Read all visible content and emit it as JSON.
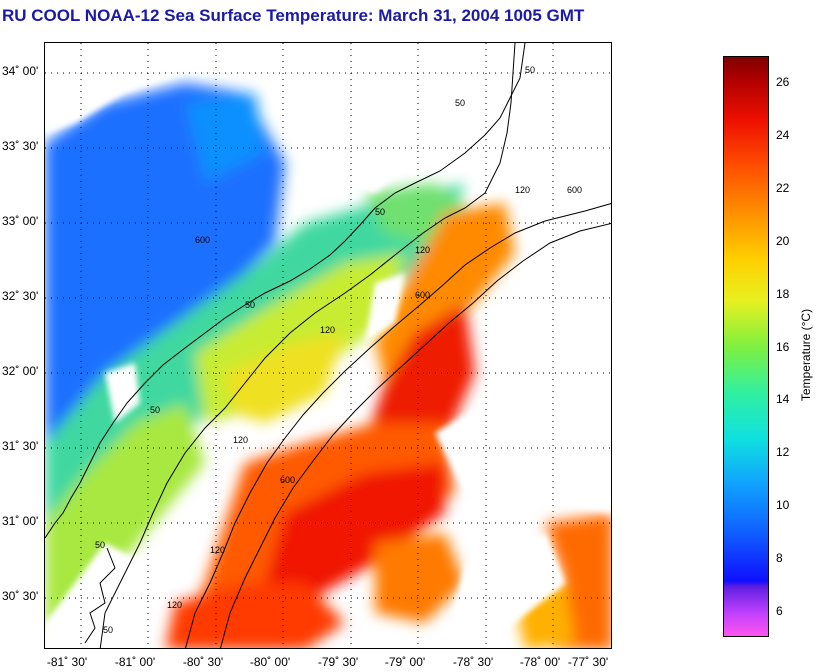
{
  "title": "RU COOL  NOAA-12  Sea Surface Temperature:  March 31, 2004 1005 GMT",
  "latitude_labels": [
    "34˚ 00'",
    "33˚ 30'",
    "33˚ 00'",
    "32˚ 30'",
    "32˚ 00'",
    "31˚ 30'",
    "31˚ 00'",
    "30˚ 30'"
  ],
  "longitude_labels": [
    "-81˚ 30'",
    "-81˚ 00'",
    "-80˚ 30'",
    "-80˚ 00'",
    "-79˚ 30'",
    "-79˚ 00'",
    "-78˚ 30'",
    "-78˚ 00'",
    "-77˚ 30'"
  ],
  "colorbar": {
    "label": "Temperature (°C)",
    "ticks": [
      "26",
      "24",
      "22",
      "20",
      "18",
      "16",
      "14",
      "12",
      "10",
      "8",
      "6"
    ],
    "range": [
      5,
      27
    ]
  },
  "contour_labels": [
    "50",
    "50",
    "50",
    "50",
    "50",
    "50",
    "50",
    "120",
    "120",
    "120",
    "120",
    "120",
    "120",
    "600",
    "600",
    "600",
    "600"
  ],
  "colors": {
    "title": "#1a1aa6",
    "cold": "#1060ff",
    "mid": "#e8f020",
    "warm": "#ee1000",
    "no_data": "#ffffff"
  }
}
